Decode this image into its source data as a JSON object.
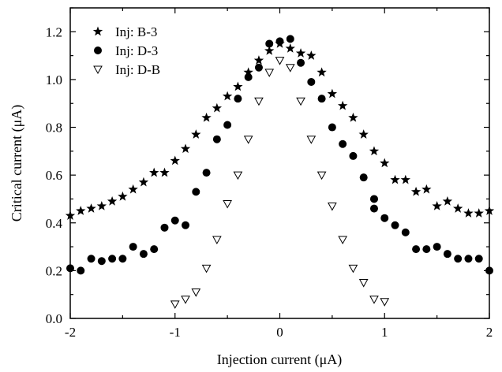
{
  "chart_data": {
    "type": "scatter",
    "title": "",
    "xlabel": "Injection current (μA)",
    "ylabel": "Critical current (μA)",
    "xlim": [
      -2,
      2
    ],
    "ylim": [
      0,
      1.3
    ],
    "x_ticks": [
      "-2",
      "-1",
      "0",
      "1",
      "2"
    ],
    "y_ticks": [
      "0.0",
      "0.2",
      "0.4",
      "0.6",
      "0.8",
      "1.0",
      "1.2"
    ],
    "grid": false,
    "legend_position": "top-left",
    "series": [
      {
        "name": "Inj: B-3",
        "marker": "star-filled",
        "color": "#000000",
        "x": [
          -2.0,
          -1.9,
          -1.8,
          -1.7,
          -1.6,
          -1.5,
          -1.4,
          -1.3,
          -1.2,
          -1.1,
          -1.0,
          -0.9,
          -0.8,
          -0.7,
          -0.6,
          -0.5,
          -0.4,
          -0.3,
          -0.2,
          -0.1,
          0.0,
          0.1,
          0.2,
          0.3,
          0.4,
          0.5,
          0.6,
          0.7,
          0.8,
          0.9,
          1.0,
          1.1,
          1.2,
          1.3,
          1.4,
          1.5,
          1.6,
          1.7,
          1.8,
          1.9,
          2.0
        ],
        "y": [
          0.43,
          0.45,
          0.46,
          0.47,
          0.49,
          0.51,
          0.54,
          0.57,
          0.61,
          0.61,
          0.66,
          0.71,
          0.77,
          0.84,
          0.88,
          0.93,
          0.97,
          1.03,
          1.08,
          1.12,
          1.15,
          1.13,
          1.11,
          1.1,
          1.03,
          0.94,
          0.89,
          0.84,
          0.77,
          0.7,
          0.65,
          0.58,
          0.58,
          0.53,
          0.54,
          0.47,
          0.49,
          0.46,
          0.44,
          0.44,
          0.45
        ]
      },
      {
        "name": "Inj: D-3",
        "marker": "circle-filled",
        "color": "#000000",
        "x": [
          -2.0,
          -1.9,
          -1.8,
          -1.7,
          -1.6,
          -1.5,
          -1.4,
          -1.3,
          -1.2,
          -1.1,
          -1.0,
          -0.9,
          -0.8,
          -0.7,
          -0.6,
          -0.5,
          -0.4,
          -0.3,
          -0.2,
          -0.1,
          0.0,
          0.1,
          0.2,
          0.3,
          0.4,
          0.5,
          0.6,
          0.7,
          0.8,
          0.9,
          0.9,
          1.0,
          1.1,
          1.2,
          1.3,
          1.4,
          1.5,
          1.6,
          1.7,
          1.8,
          1.9,
          2.0
        ],
        "y": [
          0.21,
          0.2,
          0.25,
          0.24,
          0.25,
          0.25,
          0.3,
          0.27,
          0.29,
          0.38,
          0.41,
          0.39,
          0.53,
          0.61,
          0.75,
          0.81,
          0.92,
          1.01,
          1.05,
          1.15,
          1.16,
          1.17,
          1.07,
          0.99,
          0.92,
          0.8,
          0.73,
          0.68,
          0.59,
          0.5,
          0.46,
          0.42,
          0.39,
          0.36,
          0.29,
          0.29,
          0.3,
          0.27,
          0.25,
          0.25,
          0.25,
          0.2
        ]
      },
      {
        "name": "Inj: D-B",
        "marker": "triangle-down-open",
        "color": "#000000",
        "x": [
          -1.0,
          -0.9,
          -0.8,
          -0.7,
          -0.6,
          -0.5,
          -0.4,
          -0.3,
          -0.2,
          -0.1,
          0.0,
          0.1,
          0.2,
          0.3,
          0.4,
          0.5,
          0.6,
          0.7,
          0.8,
          0.9,
          1.0
        ],
        "y": [
          0.06,
          0.08,
          0.11,
          0.21,
          0.33,
          0.48,
          0.6,
          0.75,
          0.91,
          1.03,
          1.08,
          1.05,
          0.91,
          0.75,
          0.6,
          0.47,
          0.33,
          0.21,
          0.15,
          0.08,
          0.07
        ]
      }
    ]
  }
}
